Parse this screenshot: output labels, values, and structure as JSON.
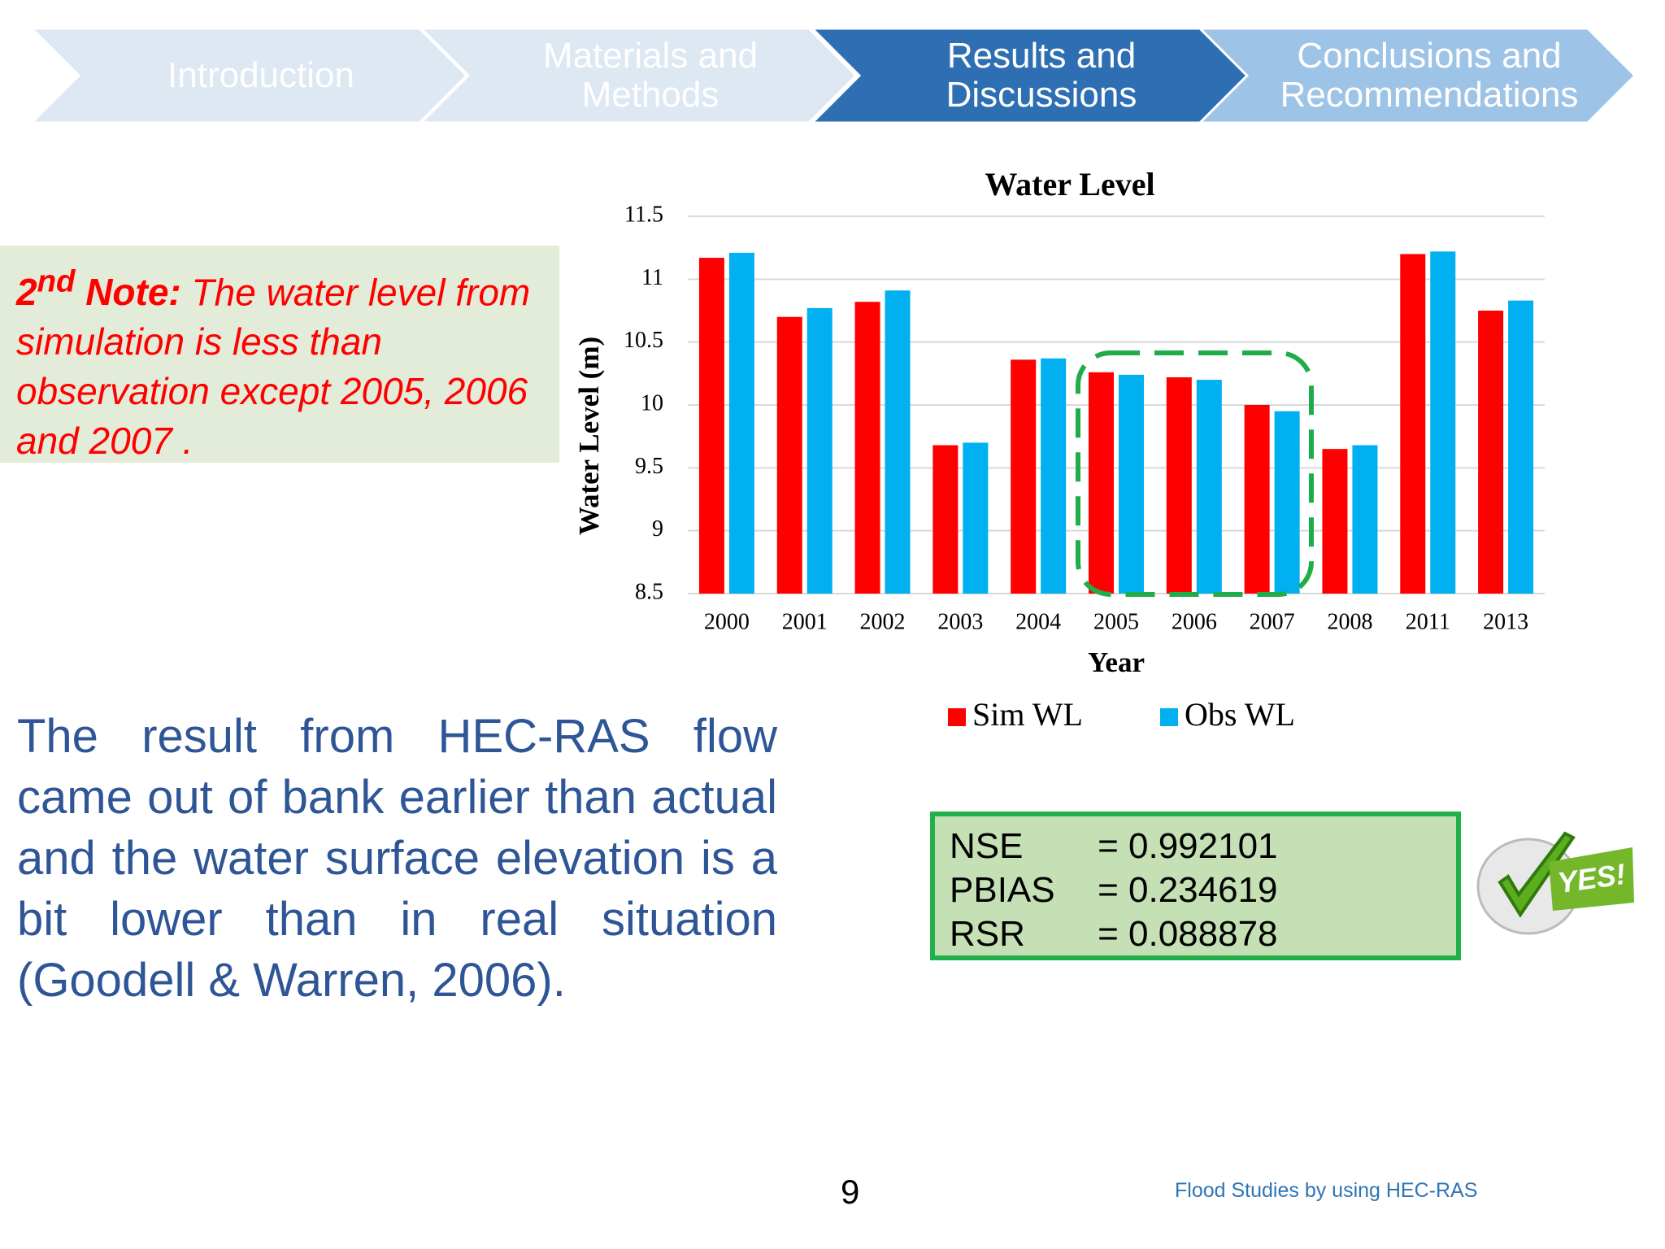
{
  "nav": {
    "steps": [
      "Introduction",
      "Materials and Methods",
      "Results and Discussions",
      "Conclusions and Recommendations"
    ],
    "active": 2
  },
  "note": {
    "ordinal": "2",
    "ordinal_suffix": "nd",
    "label": "Note:",
    "text": "The water level from simulation is less than observation except 2005, 2006 and 2007 ."
  },
  "chart_data": {
    "type": "bar",
    "title": "Water Level",
    "x_label": "Year",
    "y_label": "Water Level (m)",
    "categories": [
      "2000",
      "2001",
      "2002",
      "2003",
      "2004",
      "2005",
      "2006",
      "2007",
      "2008",
      "2011",
      "2013"
    ],
    "series": [
      {
        "name": "Sim WL",
        "color": "#ff0000",
        "values": [
          11.17,
          10.7,
          10.82,
          9.68,
          10.36,
          10.26,
          10.22,
          10.0,
          9.65,
          11.2,
          10.75
        ]
      },
      {
        "name": "Obs WL",
        "color": "#00b0f0",
        "values": [
          11.21,
          10.77,
          10.91,
          9.7,
          10.37,
          10.24,
          10.2,
          9.95,
          9.68,
          11.22,
          10.83
        ]
      }
    ],
    "ylim": [
      8.5,
      11.5
    ],
    "yticks": [
      8.5,
      9,
      9.5,
      10,
      10.5,
      11,
      11.5
    ],
    "grid": true
  },
  "paragraph": "The result from HEC-RAS flow came out of bank earlier than actual and the water surface elevation is a bit lower than in real situation (Goodell & Warren, 2006).",
  "metrics": {
    "operator": "=",
    "rows": [
      {
        "name": "NSE",
        "value": 0.992101
      },
      {
        "name": "PBIAS",
        "value": 0.234619
      },
      {
        "name": "RSR",
        "value": 0.088878
      }
    ]
  },
  "badge": "YES!",
  "page_number": "9",
  "footer": "Flood Studies by using HEC-RAS"
}
